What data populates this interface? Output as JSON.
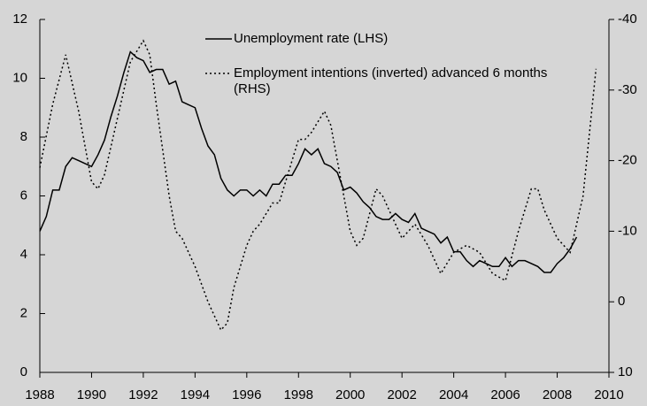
{
  "chart_data": {
    "type": "line",
    "xlim": [
      1988,
      2010
    ],
    "xticks": [
      1988,
      1990,
      1992,
      1994,
      1996,
      1998,
      2000,
      2002,
      2004,
      2006,
      2008,
      2010
    ],
    "ylim": [
      0,
      12
    ],
    "yticks": [
      0,
      2,
      4,
      6,
      8,
      10,
      12
    ],
    "y2lim": [
      10,
      -40
    ],
    "y2ticks": [
      10,
      0,
      -10,
      -20,
      -30,
      -40
    ],
    "grid": false,
    "series": [
      {
        "name": "Unemployment rate (LHS)",
        "color": "#000000",
        "line_style": "solid",
        "x": [
          1988,
          1988.25,
          1988.5,
          1988.75,
          1989,
          1989.25,
          1989.5,
          1989.75,
          1990,
          1990.25,
          1990.5,
          1990.75,
          1991,
          1991.25,
          1991.5,
          1991.75,
          1992,
          1992.25,
          1992.5,
          1992.75,
          1993,
          1993.25,
          1993.5,
          1993.75,
          1994,
          1994.25,
          1994.5,
          1994.75,
          1995,
          1995.25,
          1995.5,
          1995.75,
          1996,
          1996.25,
          1996.5,
          1996.75,
          1997,
          1997.25,
          1997.5,
          1997.75,
          1998,
          1998.25,
          1998.5,
          1998.75,
          1999,
          1999.25,
          1999.5,
          1999.75,
          2000,
          2000.25,
          2000.5,
          2000.75,
          2001,
          2001.25,
          2001.5,
          2001.75,
          2002,
          2002.25,
          2002.5,
          2002.75,
          2003,
          2003.25,
          2003.5,
          2003.75,
          2004,
          2004.25,
          2004.5,
          2004.75,
          2005,
          2005.25,
          2005.5,
          2005.75,
          2006,
          2006.25,
          2006.5,
          2006.75,
          2007,
          2007.25,
          2007.5,
          2007.75,
          2008,
          2008.25,
          2008.5,
          2008.75
        ],
        "values": [
          4.8,
          5.3,
          6.2,
          6.2,
          7.0,
          7.3,
          7.2,
          7.1,
          7.0,
          7.4,
          7.9,
          8.7,
          9.4,
          10.2,
          10.9,
          10.7,
          10.6,
          10.2,
          10.3,
          10.3,
          9.8,
          9.9,
          9.2,
          9.1,
          9.0,
          8.3,
          7.7,
          7.4,
          6.6,
          6.2,
          6.0,
          6.2,
          6.2,
          6.0,
          6.2,
          6.0,
          6.4,
          6.4,
          6.7,
          6.7,
          7.1,
          7.6,
          7.4,
          7.6,
          7.1,
          7.0,
          6.8,
          6.2,
          6.3,
          6.1,
          5.8,
          5.6,
          5.3,
          5.2,
          5.2,
          5.4,
          5.2,
          5.1,
          5.4,
          4.9,
          4.8,
          4.7,
          4.4,
          4.6,
          4.1,
          4.1,
          3.8,
          3.6,
          3.8,
          3.7,
          3.6,
          3.6,
          3.9,
          3.6,
          3.8,
          3.8,
          3.7,
          3.6,
          3.4,
          3.4,
          3.7,
          3.9,
          4.2,
          4.6
        ]
      },
      {
        "name": "Employment intentions (inverted) advanced 6 months (RHS)",
        "color": "#000000",
        "line_style": "dotted",
        "axis": "y2",
        "x": [
          1988,
          1988.5,
          1989,
          1989.5,
          1990,
          1990.25,
          1990.5,
          1991,
          1991.5,
          1992,
          1992.25,
          1992.5,
          1993,
          1993.25,
          1993.5,
          1994,
          1994.5,
          1995,
          1995.25,
          1995.5,
          1996,
          1996.25,
          1996.5,
          1997,
          1997.25,
          1997.5,
          1998,
          1998.25,
          1998.5,
          1999,
          1999.25,
          1999.5,
          2000,
          2000.25,
          2000.5,
          2001,
          2001.25,
          2001.5,
          2002,
          2002.25,
          2002.5,
          2003,
          2003.5,
          2004,
          2004.5,
          2005,
          2005.5,
          2006,
          2006.5,
          2007,
          2007.25,
          2007.5,
          2008,
          2008.5,
          2009,
          2009.25,
          2009.5
        ],
        "values": [
          -19,
          -28,
          -35,
          -27,
          -17,
          -16,
          -18,
          -26,
          -34,
          -37,
          -35,
          -28,
          -15,
          -10,
          -9,
          -5,
          0,
          4,
          3,
          -2,
          -8,
          -10,
          -11,
          -14,
          -14,
          -17,
          -23,
          -23,
          -24,
          -27,
          -25,
          -20,
          -10,
          -8,
          -9,
          -16,
          -15,
          -13,
          -9,
          -10,
          -11,
          -8,
          -4,
          -7,
          -8,
          -7,
          -4,
          -3,
          -10,
          -16,
          -16,
          -13,
          -9,
          -7,
          -15,
          -24,
          -33
        ]
      }
    ]
  }
}
